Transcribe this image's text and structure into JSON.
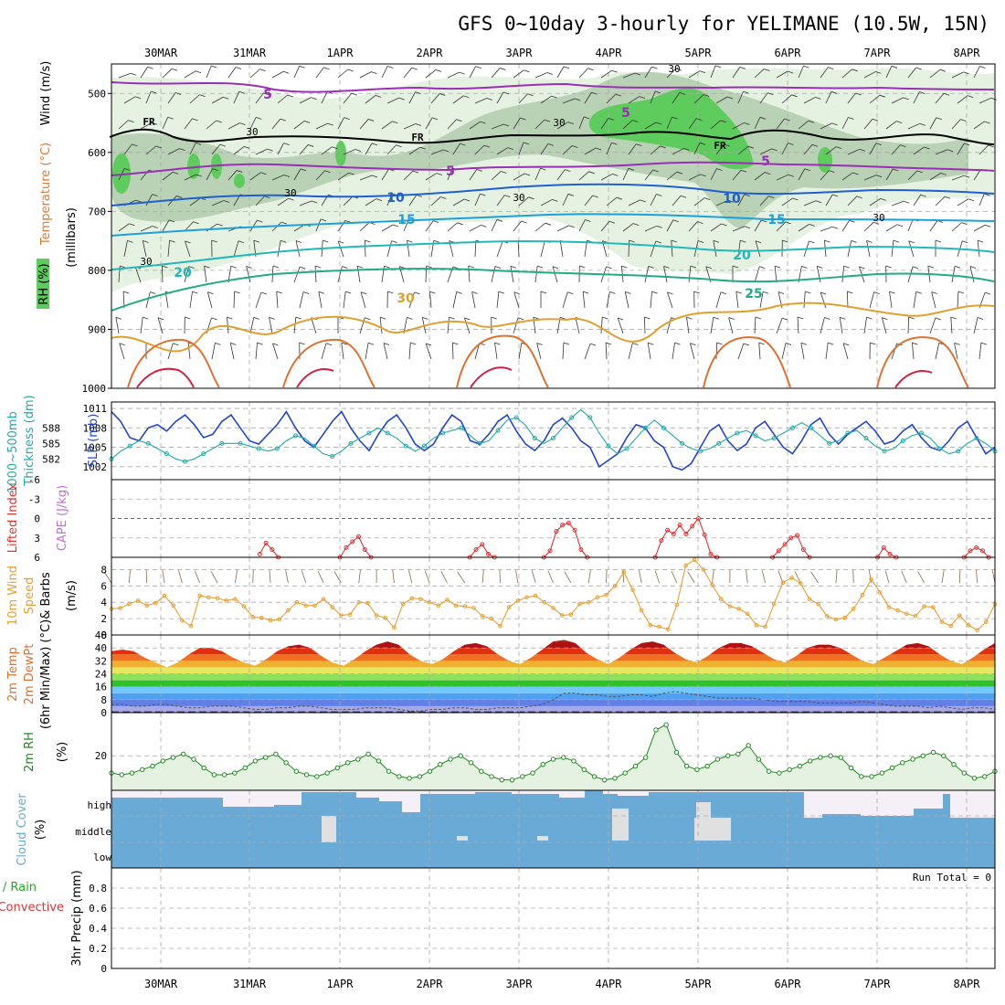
{
  "title": "GFS 0~10day 3-hourly for YELIMANE (10.5W, 15N)",
  "dates": [
    "30MAR",
    "31MAR",
    "1APR",
    "2APR",
    "3APR",
    "4APR",
    "5APR",
    "6APR",
    "7APR",
    "8APR"
  ],
  "colors": {
    "rh_light": "#e6f2e1",
    "rh_mid": "#b9d1b4",
    "rh_high": "#5dcc5d",
    "frame": "#000000",
    "slp": "#2244cc",
    "thickness": "#22aaaa",
    "lifted_index": "#dd3333",
    "wind": "#e8a030",
    "rh2m": "#228822",
    "cloud": "#6aaad6",
    "cloud_clear": "#f5f0f8"
  },
  "chart_data": [
    {
      "id": "upper_air",
      "type": "contour",
      "ylabel_parts": [
        "Wind (m/s)",
        "Temperature (°C)",
        "RH (%)"
      ],
      "ylabel2": "(millibars)",
      "yticks": [
        "500",
        "600",
        "700",
        "800",
        "900",
        "1000"
      ],
      "ylim": [
        450,
        1000
      ],
      "freezing_label": "FR",
      "temperature_labels": [
        "5",
        "5",
        "5",
        "5",
        "10",
        "10",
        "15",
        "15",
        "20",
        "20",
        "25",
        "30"
      ],
      "rh_labels": [
        "30",
        "30",
        "30",
        "30",
        "30",
        "30",
        "30"
      ],
      "temperature_levels_degC": [
        5,
        10,
        15,
        20,
        25,
        30
      ]
    },
    {
      "id": "slp_thickness",
      "type": "line",
      "ylabel": [
        "1000~500mb",
        "Thickness (dm)",
        "SLP (mb)"
      ],
      "yticks_left": [
        "588",
        "585",
        "582"
      ],
      "yticks_right": [
        "1011",
        "1008",
        "1005",
        "1002"
      ],
      "ylim_slp": [
        1000,
        1012
      ],
      "series": [
        {
          "name": "SLP (mb)",
          "values": [
            1010.5,
            1009,
            1006.5,
            1006,
            1008,
            1008.5,
            1007.5,
            1009,
            1010,
            1008.5,
            1006.5,
            1007,
            1009,
            1010,
            1008,
            1006,
            1005.5,
            1007,
            1008.5,
            1010.5,
            1008,
            1006,
            1005,
            1007,
            1009,
            1010.5,
            1008,
            1006,
            1004.5,
            1007,
            1009,
            1010,
            1008,
            1005.5,
            1004.5,
            1005.5,
            1008,
            1010,
            1009,
            1006,
            1005.5,
            1007,
            1009,
            1010,
            1007.5,
            1005.5,
            1004.5,
            1006,
            1008.5,
            1009.5,
            1008,
            1006,
            1005,
            1002,
            1003,
            1004,
            1006.5,
            1008.5,
            1008,
            1006,
            1005,
            1002,
            1001.5,
            1002.5,
            1005,
            1007.5,
            1008.5,
            1006,
            1004.5,
            1005.5,
            1008,
            1009,
            1007,
            1005,
            1004,
            1006,
            1008.5,
            1009.5,
            1007,
            1005.5,
            1007,
            1008,
            1009,
            1007.5,
            1005.5,
            1006,
            1007.5,
            1008.5,
            1006.5,
            1005,
            1004.5,
            1006,
            1008,
            1009,
            1006.5,
            1004,
            1005
          ]
        },
        {
          "name": "Thickness (dm)",
          "values": [
            582,
            583.5,
            584.5,
            585.5,
            585,
            584,
            583,
            582,
            581.5,
            582,
            583,
            584,
            585,
            585,
            585,
            584.5,
            584,
            583.5,
            584,
            585.5,
            586.5,
            586,
            584.5,
            583,
            582.5,
            583.5,
            585,
            586,
            587,
            588,
            587,
            586,
            584.5,
            583.5,
            584.5,
            586,
            587,
            587.5,
            588,
            586.5,
            585,
            585.5,
            587.5,
            589.5,
            590,
            588.5,
            586,
            585,
            586,
            588,
            590,
            591.5,
            590,
            587,
            584.5,
            583,
            584,
            586,
            588,
            589.5,
            588,
            586.5,
            585,
            584,
            583.5,
            584,
            585,
            586,
            587,
            587.5,
            586.5,
            585.5,
            586,
            587,
            588,
            589,
            588,
            586.5,
            585,
            585.5,
            587,
            587.5,
            586,
            584.5,
            583.5,
            584,
            585.5,
            586.5,
            587,
            586,
            584,
            583,
            583.5,
            585,
            586,
            585,
            583.5
          ]
        }
      ]
    },
    {
      "id": "cape_li",
      "type": "line",
      "ylabel": [
        "Lifted Index",
        "CAPE (J/kg)"
      ],
      "yticks": [
        "-6",
        "-3",
        "0",
        "3",
        "6"
      ],
      "ylim": [
        -6,
        6
      ],
      "series": [
        {
          "name": "Lifted Index",
          "values": [
            null,
            null,
            null,
            null,
            null,
            null,
            null,
            null,
            null,
            null,
            null,
            null,
            null,
            null,
            null,
            null,
            null,
            null,
            null,
            null,
            null,
            null,
            null,
            null,
            5.5,
            3.8,
            4.8,
            6,
            null,
            null,
            null,
            null,
            null,
            null,
            null,
            null,
            null,
            6,
            4.5,
            3.6,
            2.8,
            4.8,
            6,
            null,
            null,
            null,
            null,
            null,
            null,
            null,
            null,
            null,
            null,
            null,
            null,
            null,
            null,
            null,
            6,
            4.8,
            4,
            5.5,
            6,
            null,
            null,
            null,
            null,
            null,
            null,
            null,
            6,
            5,
            2,
            1,
            0.7,
            1.8,
            4.8,
            6,
            null,
            null,
            null,
            null,
            null,
            null,
            null,
            null,
            null,
            null,
            6,
            3.4,
            1.8,
            2.4,
            1,
            2.4,
            1.2,
            0,
            2.5,
            5.5,
            6,
            null,
            null,
            null,
            null,
            null,
            null,
            null,
            null,
            6,
            5,
            4,
            3,
            2.6,
            4.8,
            6,
            null,
            null,
            null,
            null,
            null,
            null,
            null,
            null,
            null,
            null,
            6,
            4.5,
            5.5,
            6,
            null,
            null,
            null,
            null,
            null,
            null,
            null,
            null,
            null,
            null,
            6,
            5,
            4.5,
            5,
            6,
            null
          ]
        }
      ]
    },
    {
      "id": "wind10m",
      "type": "line",
      "ylabel": [
        "10m Wind",
        "Speed",
        "& Barbs",
        "(m/s)"
      ],
      "yticks": [
        "0",
        "2",
        "4",
        "6",
        "8"
      ],
      "ylim": [
        0,
        9.5
      ],
      "series": [
        {
          "name": "Speed (m/s)",
          "values": [
            3.2,
            3.3,
            3.8,
            4.2,
            3.6,
            3.9,
            4.8,
            3.6,
            1.8,
            1.1,
            4.8,
            4.6,
            4.5,
            4.2,
            4.4,
            3.5,
            2.2,
            2.1,
            1.8,
            1.9,
            3,
            4,
            3.6,
            3.6,
            4.4,
            3.4,
            2.4,
            2.5,
            4,
            3.9,
            2.4,
            2.1,
            0.9,
            3.8,
            4.5,
            4.4,
            4,
            3.6,
            4.3,
            3.6,
            3.5,
            3.3,
            2.3,
            2,
            1.1,
            3.4,
            4.2,
            4.6,
            4.8,
            4,
            3.3,
            2.4,
            2.5,
            3.8,
            4,
            4.6,
            4.9,
            6,
            7.7,
            5.5,
            3,
            1.2,
            1,
            0.7,
            3.7,
            8.5,
            9.2,
            8,
            6.1,
            4.4,
            3.5,
            3.2,
            2.6,
            1.2,
            1,
            3.8,
            6.4,
            7,
            6.3,
            4.4,
            3.8,
            2.3,
            1.9,
            2.1,
            3.2,
            4.9,
            6.8,
            5.2,
            3.4,
            3,
            2.6,
            2.3,
            3.5,
            3.4,
            1.6,
            1.1,
            2.4,
            1.2,
            0.6,
            1.6,
            3.8
          ]
        }
      ]
    },
    {
      "id": "temp2m",
      "type": "area",
      "ylabel": [
        "2m Temp",
        "2m DewPt",
        "(6hr Min/Max) (°C)"
      ],
      "yticks": [
        "0",
        "8",
        "16",
        "24",
        "32",
        "40",
        "48"
      ],
      "ylim": [
        0,
        48
      ],
      "series": [
        {
          "name": "2m Temp (°C)",
          "values": [
            38,
            39,
            38,
            34,
            31,
            28,
            31,
            36,
            40,
            40,
            38,
            34,
            31,
            29,
            33,
            38,
            41,
            42,
            40,
            35,
            31,
            29,
            33,
            38,
            42,
            44,
            42,
            36,
            32,
            30,
            33,
            38,
            42,
            43,
            41,
            36,
            32,
            30,
            34,
            39,
            44,
            45,
            43,
            37,
            33,
            30,
            34,
            39,
            43,
            44,
            42,
            37,
            33,
            31,
            35,
            40,
            43,
            43,
            41,
            37,
            33,
            31,
            35,
            40,
            42,
            42,
            40,
            36,
            32,
            30,
            34,
            38,
            42,
            43,
            41,
            36,
            32,
            30,
            34,
            39,
            43
          ]
        },
        {
          "name": "2m DewPt (°C)",
          "values": [
            5,
            5,
            4,
            4,
            5,
            5,
            4,
            3,
            3,
            4,
            4,
            4,
            3,
            2,
            2,
            3,
            3,
            4,
            4,
            3,
            2,
            2,
            2,
            3,
            3,
            3,
            2,
            1,
            1,
            2,
            2,
            3,
            3,
            2,
            2,
            3,
            3,
            3,
            4,
            5,
            8,
            12,
            12,
            11,
            11,
            10,
            10,
            11,
            11,
            10,
            12,
            13,
            12,
            11,
            10,
            9,
            9,
            9,
            9,
            8,
            7,
            7,
            7,
            7,
            6,
            6,
            6,
            6,
            7,
            6,
            5,
            4,
            4,
            4,
            3,
            4,
            3,
            2,
            3,
            3,
            2
          ]
        }
      ]
    },
    {
      "id": "rh2m",
      "type": "area",
      "ylabel": [
        "2m RH",
        "(%)"
      ],
      "yticks": [
        "20"
      ],
      "ylim": [
        0,
        45
      ],
      "series": [
        {
          "name": "2m RH (%)",
          "values": [
            10,
            9,
            10,
            12,
            14,
            17,
            19,
            21,
            18,
            13,
            9,
            9,
            10,
            13,
            17,
            19,
            21,
            16,
            11,
            9,
            8,
            10,
            13,
            16,
            18,
            21,
            17,
            11,
            8,
            7,
            8,
            11,
            15,
            18,
            20,
            16,
            11,
            8,
            6,
            6,
            8,
            10,
            15,
            18,
            19,
            17,
            12,
            8,
            6,
            7,
            10,
            14,
            19,
            35,
            38,
            22,
            14,
            12,
            14,
            18,
            20,
            21,
            26,
            18,
            11,
            10,
            12,
            14,
            17,
            19,
            20,
            19,
            13,
            8,
            8,
            10,
            13,
            16,
            18,
            20,
            22,
            20,
            15,
            10,
            7,
            8,
            11
          ]
        }
      ]
    },
    {
      "id": "cloud",
      "type": "bar",
      "ylabel": [
        "Cloud Cover",
        "(%)"
      ],
      "yticks": [
        "high",
        "middle",
        "low"
      ]
    },
    {
      "id": "precip",
      "type": "bar",
      "ylabel": [
        "Total / Rain",
        "Convective",
        "3hr Precip (mm)"
      ],
      "yticks": [
        "0",
        "0.2",
        "0.4",
        "0.6",
        "0.8"
      ],
      "ylim": [
        0,
        1
      ],
      "run_total": "Run Total = 0",
      "series": [
        {
          "name": "3hr Precip (mm)",
          "values": []
        }
      ]
    }
  ]
}
